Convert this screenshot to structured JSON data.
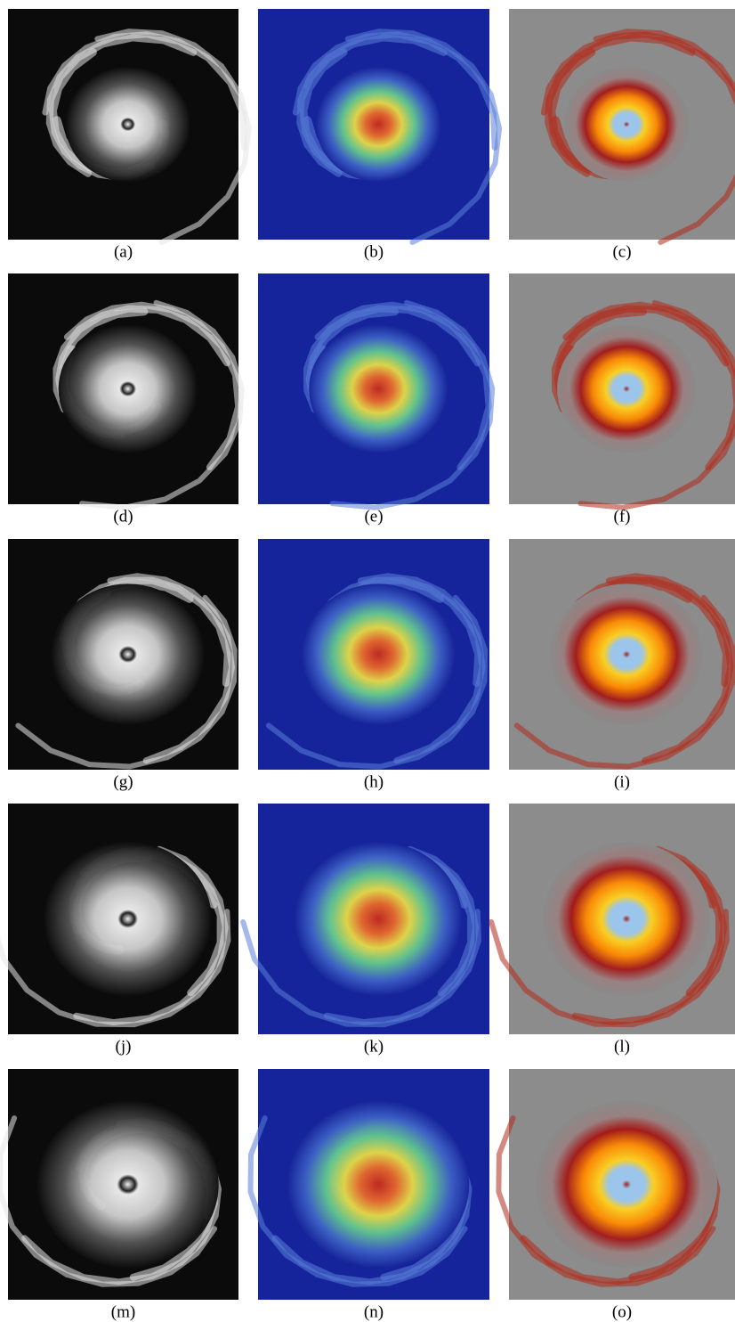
{
  "figure": {
    "captions": [
      "(a)",
      "(b)",
      "(c)",
      "(d)",
      "(e)",
      "(f)",
      "(g)",
      "(h)",
      "(i)",
      "(j)",
      "(k)",
      "(l)",
      "(m)",
      "(n)",
      "(o)"
    ]
  }
}
